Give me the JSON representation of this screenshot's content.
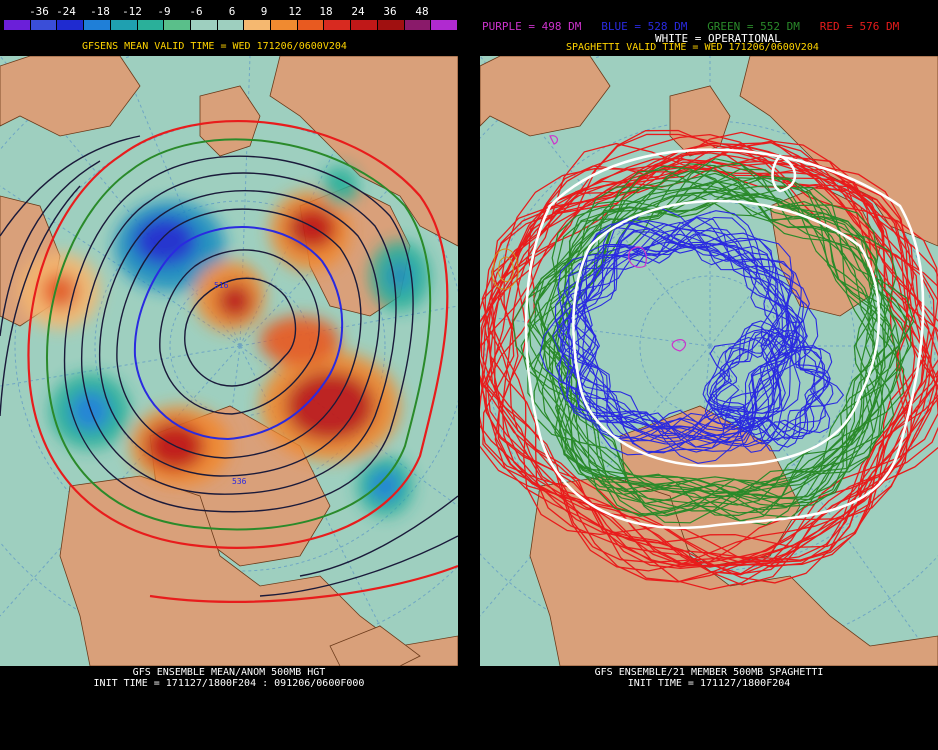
{
  "colorbar": {
    "ticks": [
      "-36",
      "-24",
      "-18",
      "-12",
      "-9",
      "-6",
      "6",
      "9",
      "12",
      "18",
      "24",
      "36",
      "48"
    ],
    "colors": [
      "#6b1fd9",
      "#3a4ed8",
      "#1f2bd0",
      "#1f7fd8",
      "#1fa0b0",
      "#2ab09a",
      "#5abf8a",
      "#9ecfbf",
      "#9ecfbf",
      "#f5b870",
      "#f08a30",
      "#e85a20",
      "#d82a20",
      "#c01818",
      "#a01010",
      "#8a1a6a",
      "#b02ad0"
    ]
  },
  "left_panel": {
    "title": "GFSENS MEAN VALID TIME = WED 171206/0600V204",
    "footer_line1": "GFS ENSEMBLE MEAN/ANOM 500MB HGT",
    "footer_line2": "INIT TIME = 171127/1800F204 : 091206/0600F000",
    "contour_labels": [
      "516",
      "536"
    ]
  },
  "right_panel": {
    "legend_purple": "PURPLE = 498 DM",
    "legend_blue": "BLUE = 528 DM",
    "legend_green": "GREEN = 552 DM",
    "legend_red": "RED = 576 DM",
    "legend_white": "WHITE = OPERATIONAL",
    "title": "SPAGHETTI VALID TIME = WED 171206/0600V204",
    "footer_line1": "GFS ENSEMBLE/21 MEMBER 500MB SPAGHETTI",
    "footer_line2": "INIT TIME = 171127/1800F204"
  },
  "colors": {
    "ocean": "#9ecfbf",
    "land": "#d9a07a",
    "title_yellow": "#ffd400",
    "purple": "#cc33cc",
    "blue": "#2a2ae0",
    "green": "#2a8a2a",
    "red": "#e81c1c",
    "white": "#ffffff"
  }
}
